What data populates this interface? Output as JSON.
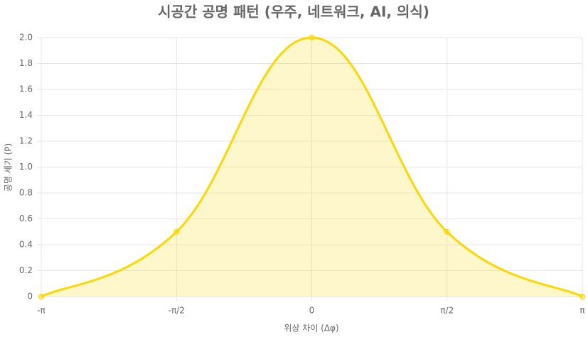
{
  "chart_data": {
    "type": "line",
    "title": "시공간 공명 패턴 (우주, 네트워크, AI, 의식)",
    "x_label": "위상 차이 (Δφ)",
    "y_label": "공명 세기 (P)",
    "categories": [
      "-π",
      "-π/2",
      "0",
      "π/2",
      "π"
    ],
    "values": [
      0,
      0.5,
      2,
      0.5,
      0
    ],
    "color": "#FFD700",
    "fill": true,
    "ylim": [
      0,
      2
    ],
    "yticks": [
      0,
      0.2,
      0.4,
      0.6,
      0.8,
      {
        "value": 1,
        "label": "1.0"
      },
      1.2,
      1.4,
      1.6,
      1.8,
      {
        "value": 2,
        "label": "2.0"
      }
    ],
    "grid": true
  }
}
